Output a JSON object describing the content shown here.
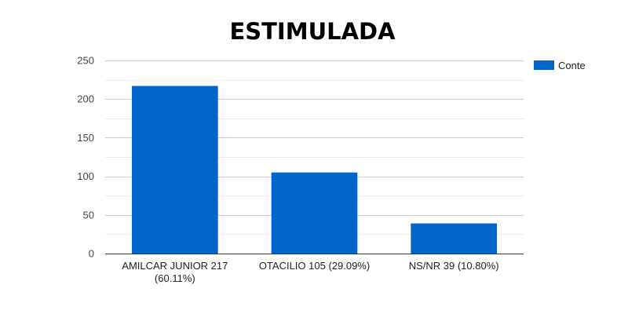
{
  "chart_data": {
    "type": "bar",
    "title": "ESTIMULADA",
    "categories": [
      [
        "AMILCAR JUNIOR 217",
        "(60.11%)"
      ],
      [
        "OTACILIO 105 (29.09%)"
      ],
      [
        "NS/NR 39 (10.80%)"
      ]
    ],
    "series": [
      {
        "name": "Conte",
        "values": [
          217,
          105,
          39
        ],
        "color": "#0066cc"
      }
    ],
    "ylim": [
      0,
      250
    ],
    "yticks": [
      "0",
      "50",
      "100",
      "150",
      "200",
      "250"
    ],
    "xlabel": "",
    "ylabel": "",
    "grid": true,
    "legend_position": "right"
  }
}
